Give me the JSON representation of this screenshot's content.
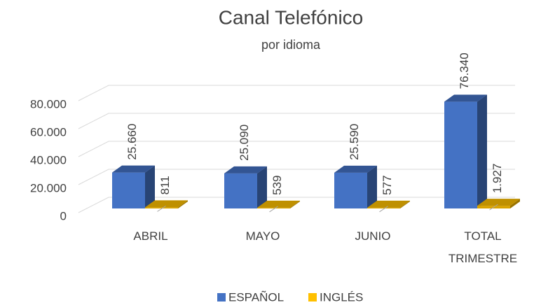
{
  "chart_data": {
    "type": "bar3d",
    "title": "Canal Telefónico",
    "subtitle": "por idioma",
    "categories": [
      "ABRIL",
      "MAYO",
      "JUNIO",
      "TOTAL TRIMESTRE"
    ],
    "series": [
      {
        "name": "ESPAÑOL",
        "color": "#4472c4",
        "values": [
          25660,
          25090,
          25590,
          76340
        ],
        "value_labels": [
          "25.660",
          "25.090",
          "25.590",
          "76.340"
        ]
      },
      {
        "name": "INGLÉS",
        "color": "#ffc000",
        "values": [
          811,
          539,
          577,
          1927
        ],
        "value_labels": [
          "811",
          "539",
          "577",
          "1.927"
        ]
      }
    ],
    "ylim": [
      0,
      80000
    ],
    "yticks": [
      0,
      {
        "value": 20000,
        "label": "20.000"
      },
      {
        "value": 40000,
        "label": "40.000"
      },
      {
        "value": 60000,
        "label": "60.000"
      },
      {
        "value": 80000,
        "label": "80.000"
      }
    ],
    "grid": true,
    "legend": "bottom"
  }
}
